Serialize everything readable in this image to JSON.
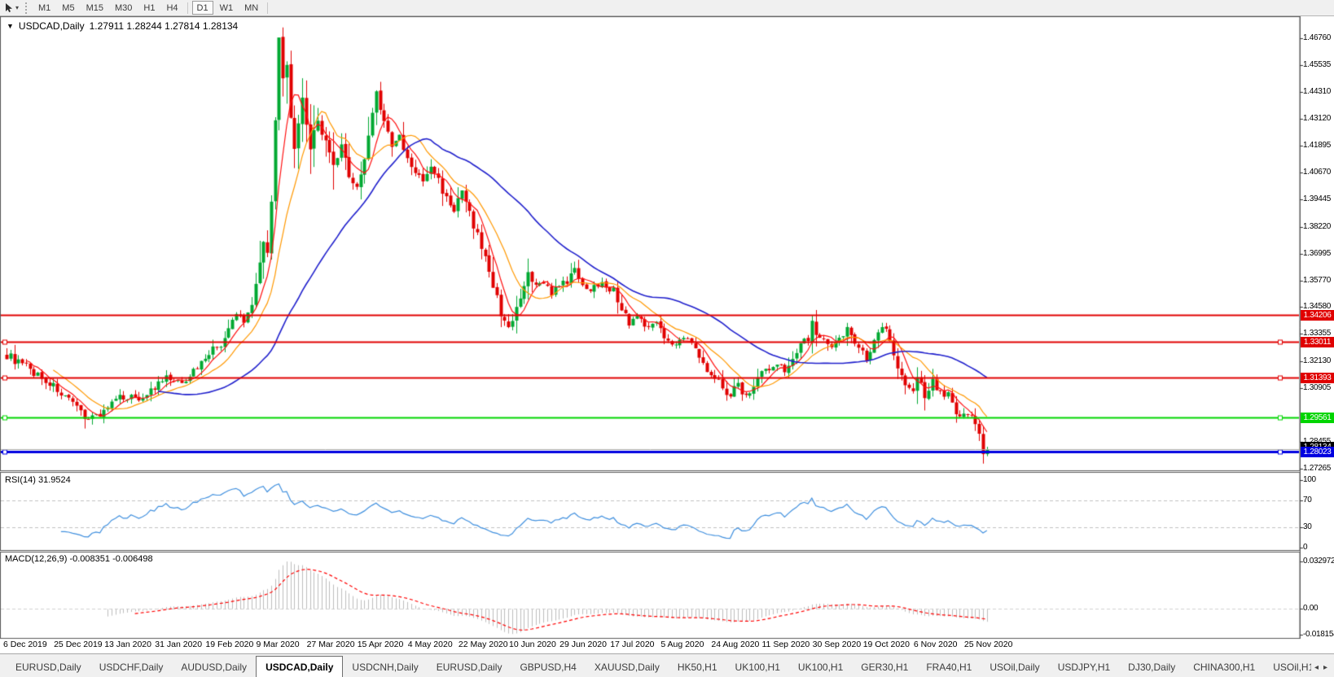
{
  "toolbar": {
    "timeframes": [
      "M1",
      "M5",
      "M15",
      "M30",
      "H1",
      "H4",
      "D1",
      "W1",
      "MN"
    ],
    "active_timeframe": "D1",
    "cursor_tool": "cursor-pointer-tool",
    "dropdown_glyph": "▾"
  },
  "chart": {
    "symbol_label": "USDCAD,Daily",
    "dropdown_glyph": "▼",
    "ohlc_text": "1.27911 1.28244 1.27814 1.28134",
    "open": "1.27911",
    "high": "1.28244",
    "low": "1.27814",
    "close": "1.28134"
  },
  "rsi": {
    "label": "RSI(14) 31.9524",
    "name": "RSI(14)",
    "value": "31.9524"
  },
  "macd": {
    "label": "MACD(12,26,9) -0.008351 -0.006498",
    "name": "MACD(12,26,9)",
    "value_main": "-0.008351",
    "value_signal": "-0.006498"
  },
  "tabs": {
    "items": [
      "EURUSD,Daily",
      "USDCHF,Daily",
      "AUDUSD,Daily",
      "USDCAD,Daily",
      "USDCNH,Daily",
      "EURUSD,Daily",
      "GBPUSD,H4",
      "XAUUSD,Daily",
      "HK50,H1",
      "UK100,H1",
      "UK100,H1",
      "GER30,H1",
      "FRA40,H1",
      "USOil,Daily",
      "USDJPY,H1",
      "DJ30,Daily",
      "CHINA300,H1",
      "USOil,H1"
    ],
    "active_index": 3,
    "arrow_left": "◂",
    "arrow_right": "▸"
  },
  "chart_data": {
    "type": "candlestick",
    "symbol": "USDCAD",
    "timeframe": "Daily",
    "n_bars": 253,
    "ylim": [
      1.27213,
      1.47719
    ],
    "up_color": "#00a832",
    "down_color": "#e00000",
    "last_bar": {
      "open": 1.27911,
      "high": 1.28244,
      "low": 1.27814,
      "close": 1.28134
    },
    "close_keypoints": [
      [
        0,
        1.324
      ],
      [
        4,
        1.3195
      ],
      [
        8,
        1.315
      ],
      [
        13,
        1.3085
      ],
      [
        17,
        1.301
      ],
      [
        21,
        1.2955
      ],
      [
        24,
        1.2975
      ],
      [
        26,
        1.3005
      ],
      [
        30,
        1.3055
      ],
      [
        34,
        1.3045
      ],
      [
        38,
        1.309
      ],
      [
        41,
        1.3135
      ],
      [
        44,
        1.311
      ],
      [
        48,
        1.3165
      ],
      [
        52,
        1.3255
      ],
      [
        55,
        1.3285
      ],
      [
        57,
        1.335
      ],
      [
        59,
        1.343
      ],
      [
        61,
        1.339
      ],
      [
        63,
        1.348
      ],
      [
        65,
        1.366
      ],
      [
        66,
        1.375
      ],
      [
        67,
        1.372
      ],
      [
        68,
        1.395
      ],
      [
        69,
        1.43
      ],
      [
        70,
        1.467
      ],
      [
        71,
        1.448
      ],
      [
        72,
        1.455
      ],
      [
        73,
        1.433
      ],
      [
        74,
        1.416
      ],
      [
        76,
        1.439
      ],
      [
        78,
        1.418
      ],
      [
        80,
        1.431
      ],
      [
        82,
        1.42
      ],
      [
        84,
        1.409
      ],
      [
        86,
        1.418
      ],
      [
        88,
        1.406
      ],
      [
        90,
        1.4
      ],
      [
        92,
        1.412
      ],
      [
        94,
        1.435
      ],
      [
        95,
        1.443
      ],
      [
        97,
        1.43
      ],
      [
        99,
        1.418
      ],
      [
        101,
        1.423
      ],
      [
        103,
        1.412
      ],
      [
        105,
        1.407
      ],
      [
        107,
        1.402
      ],
      [
        109,
        1.41
      ],
      [
        111,
        1.403
      ],
      [
        113,
        1.395
      ],
      [
        115,
        1.39
      ],
      [
        117,
        1.3975
      ],
      [
        119,
        1.388
      ],
      [
        121,
        1.378
      ],
      [
        123,
        1.368
      ],
      [
        125,
        1.356
      ],
      [
        127,
        1.343
      ],
      [
        129,
        1.338
      ],
      [
        130,
        1.339
      ],
      [
        132,
        1.349
      ],
      [
        134,
        1.36
      ],
      [
        136,
        1.3545
      ],
      [
        138,
        1.358
      ],
      [
        140,
        1.352
      ],
      [
        143,
        1.356
      ],
      [
        146,
        1.362
      ],
      [
        148,
        1.357
      ],
      [
        150,
        1.353
      ],
      [
        153,
        1.358
      ],
      [
        156,
        1.353
      ],
      [
        158,
        1.345
      ],
      [
        160,
        1.339
      ],
      [
        162,
        1.342
      ],
      [
        164,
        1.337
      ],
      [
        166,
        1.34
      ],
      [
        169,
        1.333
      ],
      [
        172,
        1.329
      ],
      [
        175,
        1.332
      ],
      [
        178,
        1.323
      ],
      [
        180,
        1.318
      ],
      [
        182,
        1.315
      ],
      [
        184,
        1.309
      ],
      [
        186,
        1.306
      ],
      [
        188,
        1.311
      ],
      [
        190,
        1.305
      ],
      [
        192,
        1.31
      ],
      [
        194,
        1.318
      ],
      [
        196,
        1.3165
      ],
      [
        198,
        1.32
      ],
      [
        200,
        1.316
      ],
      [
        202,
        1.324
      ],
      [
        204,
        1.3295
      ],
      [
        206,
        1.332
      ],
      [
        207,
        1.338
      ],
      [
        208,
        1.334
      ],
      [
        210,
        1.33
      ],
      [
        212,
        1.326
      ],
      [
        214,
        1.331
      ],
      [
        216,
        1.336
      ],
      [
        218,
        1.331
      ],
      [
        220,
        1.325
      ],
      [
        221,
        1.321
      ],
      [
        223,
        1.331
      ],
      [
        225,
        1.3385
      ],
      [
        227,
        1.332
      ],
      [
        229,
        1.318
      ],
      [
        231,
        1.312
      ],
      [
        233,
        1.308
      ],
      [
        234,
        1.314
      ],
      [
        236,
        1.306
      ],
      [
        238,
        1.312
      ],
      [
        240,
        1.308
      ],
      [
        242,
        1.306
      ],
      [
        244,
        1.298
      ],
      [
        246,
        1.296
      ],
      [
        247,
        1.2985
      ],
      [
        249,
        1.293
      ],
      [
        250,
        1.288
      ],
      [
        251,
        1.27911
      ],
      [
        252,
        1.28134
      ]
    ],
    "moving_averages": [
      {
        "name": "ma-fast",
        "period": 6,
        "color": "#ff1010"
      },
      {
        "name": "ma-medium",
        "period": 13,
        "color": "#ff9800"
      },
      {
        "name": "ma-slow",
        "period": 40,
        "color": "#2020cc"
      }
    ],
    "hlines": [
      {
        "label": "1.34206",
        "value": 1.34206,
        "color": "#e00000",
        "width": 2,
        "marker": false
      },
      {
        "label": "1.33011",
        "value": 1.33011,
        "color": "#e00000",
        "width": 2,
        "marker": true
      },
      {
        "label": "1.31393",
        "value": 1.31393,
        "color": "#e00000",
        "width": 2,
        "marker": true
      },
      {
        "label": "1.29561",
        "value": 1.29561,
        "color": "#00d500",
        "width": 2,
        "marker": true
      },
      {
        "label": "1.28023",
        "value": 1.28023,
        "color": "#0000e0",
        "width": 3,
        "marker": true
      }
    ],
    "current_price_line": {
      "label": "1.28134",
      "value": 1.28134,
      "line_color": "#a8a8a8",
      "tag_color": "#000000"
    },
    "y_axis_ticks": [
      {
        "label": "1.46760",
        "value": 1.4676
      },
      {
        "label": "1.45535",
        "value": 1.45535
      },
      {
        "label": "1.44310",
        "value": 1.4431
      },
      {
        "label": "1.43120",
        "value": 1.4312
      },
      {
        "label": "1.41895",
        "value": 1.41895
      },
      {
        "label": "1.40670",
        "value": 1.4067
      },
      {
        "label": "1.39445",
        "value": 1.39445
      },
      {
        "label": "1.38220",
        "value": 1.3822
      },
      {
        "label": "1.36995",
        "value": 1.36995
      },
      {
        "label": "1.35770",
        "value": 1.3577
      },
      {
        "label": "1.34580",
        "value": 1.3458
      },
      {
        "label": "1.33355",
        "value": 1.33355
      },
      {
        "label": "1.32130",
        "value": 1.3213
      },
      {
        "label": "1.30905",
        "value": 1.30905
      },
      {
        "label": "1.28455",
        "value": 1.28455
      },
      {
        "label": "1.27265",
        "value": 1.27265
      }
    ],
    "x_axis_dates": [
      "6 Dec 2019",
      "25 Dec 2019",
      "13 Jan 2020",
      "31 Jan 2020",
      "19 Feb 2020",
      "9 Mar 2020",
      "27 Mar 2020",
      "15 Apr 2020",
      "4 May 2020",
      "22 May 2020",
      "10 Jun 2020",
      "29 Jun 2020",
      "17 Jul 2020",
      "5 Aug 2020",
      "24 Aug 2020",
      "11 Sep 2020",
      "30 Sep 2020",
      "19 Oct 2020",
      "6 Nov 2020",
      "25 Nov 2020"
    ],
    "x_tick_interval_bars": 13,
    "indicators": [
      {
        "type": "rsi",
        "period": 14,
        "current": 31.9524,
        "color": "#3f8fde",
        "levels": [
          100,
          70,
          30,
          0
        ],
        "dashed_levels": [
          70,
          30
        ],
        "range": [
          0,
          100
        ]
      },
      {
        "type": "macd",
        "fast": 12,
        "slow": 26,
        "signal": 9,
        "current_macd": -0.008351,
        "current_signal": -0.006498,
        "histogram_color": "#bdbdbd",
        "signal_color": "#ff0000",
        "axis_ticks": [
          {
            "label": "0.032972",
            "value": 0.032972
          },
          {
            "label": "0.00",
            "value": 0.0
          },
          {
            "label": "-0.018154",
            "value": -0.018154
          }
        ]
      }
    ]
  }
}
